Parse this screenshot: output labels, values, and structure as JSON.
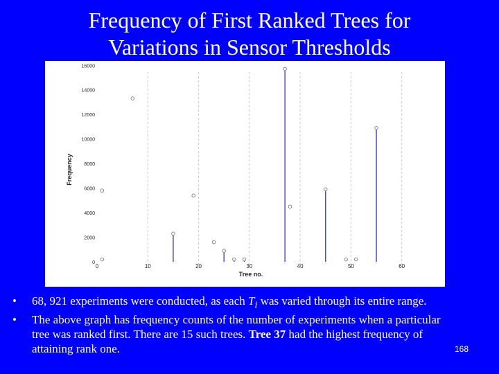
{
  "slide": {
    "title_line1": "Frequency of First Ranked Trees for",
    "title_line2": "Variations in Sensor Thresholds",
    "bullets": [
      {
        "bullet_char": "•",
        "text_before": "68, 921 experiments were conducted, as each ",
        "var_main": "T",
        "var_sub": "i",
        "text_after": " was varied through its entire range."
      },
      {
        "bullet_char": "•",
        "text_before": "The above graph has frequency counts of the number of experiments when a particular tree was ranked first. There are 15 such trees. ",
        "bold_text": "Tree 37",
        "text_after": " had the highest frequency of attaining rank one."
      }
    ],
    "slide_number": "168",
    "colors": {
      "background": "#0000ff",
      "text": "#ffffff",
      "chart_background": "#ffffff",
      "stem": "#3333cc",
      "point": "#7a7a7a",
      "grid": "#c8c8c8",
      "axis_text": "#222222"
    }
  },
  "chart_data": {
    "type": "scatter",
    "style": "stem",
    "xlabel": "Tree no.",
    "ylabel": "Frequency",
    "xlim": [
      0,
      61
    ],
    "ylim": [
      0,
      15000
    ],
    "xticks": [
      0,
      10,
      20,
      30,
      40,
      50,
      60
    ],
    "xtick_labels": [
      "0",
      "10",
      "20",
      "30",
      "40",
      "50",
      "60"
    ],
    "yticks": [
      0,
      2000,
      4000,
      6000,
      8000,
      10000,
      12000,
      14000,
      16000
    ],
    "ytick_labels": [
      "0",
      "2000",
      "4000",
      "6000",
      "8000",
      "10000",
      "12000",
      "14000",
      "16000"
    ],
    "grid": "vertical dashed",
    "points": [
      {
        "x": 1,
        "y": 200,
        "stem": false
      },
      {
        "x": 1,
        "y": 5800,
        "stem": false
      },
      {
        "x": 7,
        "y": 13300,
        "stem": false
      },
      {
        "x": 15,
        "y": 2300,
        "stem": true
      },
      {
        "x": 19,
        "y": 5400,
        "stem": false
      },
      {
        "x": 23,
        "y": 1600,
        "stem": false
      },
      {
        "x": 25,
        "y": 900,
        "stem": true
      },
      {
        "x": 27,
        "y": 200,
        "stem": true
      },
      {
        "x": 29,
        "y": 200,
        "stem": true
      },
      {
        "x": 37,
        "y": 15700,
        "stem": true
      },
      {
        "x": 38,
        "y": 4500,
        "stem": false
      },
      {
        "x": 45,
        "y": 5900,
        "stem": true
      },
      {
        "x": 49,
        "y": 200,
        "stem": false
      },
      {
        "x": 51,
        "y": 200,
        "stem": false
      },
      {
        "x": 55,
        "y": 10900,
        "stem": true
      }
    ]
  }
}
